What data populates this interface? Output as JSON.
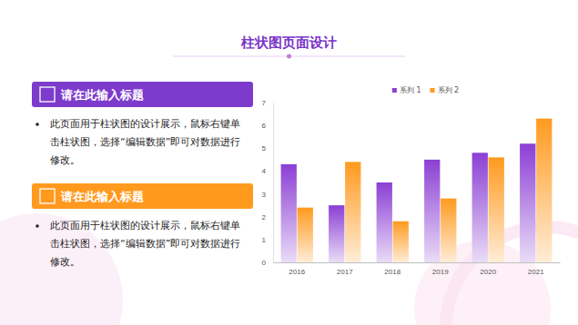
{
  "page": {
    "title": "柱状图页面设计",
    "panels": [
      {
        "heading": "请在此输入标题",
        "text": "此页面用于柱状图的设计展示，鼠标右键单击柱状图，选择“编辑数据”即可对数据进行修改。"
      },
      {
        "heading": "请在此输入标题",
        "text": "此页面用于柱状图的设计展示，鼠标右键单击柱状图，选择“编辑数据”即可对数据进行修改。"
      }
    ]
  },
  "chart_data": {
    "type": "bar",
    "categories": [
      "2016",
      "2017",
      "2018",
      "2019",
      "2020",
      "2021"
    ],
    "series": [
      {
        "name": "系列 1",
        "color": "#8b3fd4",
        "values": [
          4.3,
          2.5,
          3.5,
          4.5,
          4.8,
          5.2
        ]
      },
      {
        "name": "系列 2",
        "color": "#ff9a1f",
        "values": [
          2.4,
          4.4,
          1.8,
          2.8,
          4.6,
          6.3
        ]
      }
    ],
    "ylim": [
      0,
      7
    ],
    "yticks": [
      0,
      1,
      2,
      3,
      4,
      5,
      6,
      7
    ],
    "grid": false,
    "legend": "top"
  }
}
